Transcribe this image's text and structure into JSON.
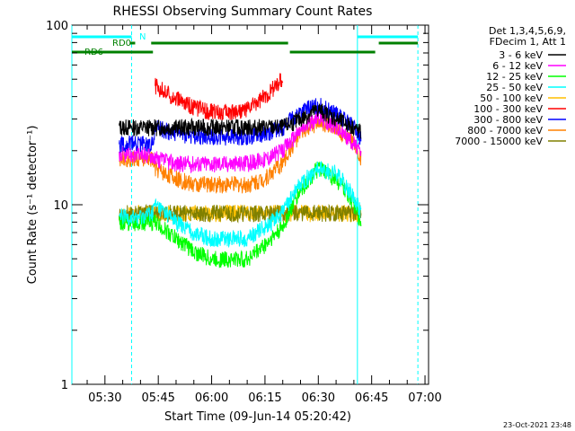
{
  "chart_data": {
    "type": "line",
    "title": "RHESSI Observing Summary Count Rates",
    "xlabel": "Start Time (09-Jun-14 05:20:42)",
    "ylabel": "Count Rate (s⁻¹ detector⁻¹)",
    "y_scale": "log",
    "ylim": [
      1,
      100
    ],
    "xlim": [
      "05:20:42",
      "07:01:00"
    ],
    "x_ticks": [
      "05:30",
      "05:45",
      "06:00",
      "06:15",
      "06:30",
      "06:45",
      "07:00"
    ],
    "y_ticks": [
      "1",
      "10",
      "100"
    ],
    "grid": false,
    "legend_position": "right",
    "legend_header": [
      "Det 1,3,4,5,6,9,",
      "FDecim 1, Att 1"
    ],
    "timestamp": "23-Oct-2021 23:48",
    "flags": [
      {
        "label": "N",
        "color": "#00ffff",
        "intervals": [
          [
            "05:20:42",
            "05:37:30"
          ],
          [
            "06:41:00",
            "06:58:00"
          ]
        ]
      },
      {
        "label": "RD0",
        "color": "#008000",
        "intervals": [
          [
            "05:37:00",
            "05:38:30"
          ],
          [
            "05:43:00",
            "06:21:30"
          ],
          [
            "06:47:00",
            "06:58:00"
          ]
        ]
      },
      {
        "label": "RD6",
        "color": "#008000",
        "intervals": [
          [
            "05:20:42",
            "05:43:30"
          ],
          [
            "06:22:00",
            "06:46:00"
          ]
        ]
      }
    ],
    "markers": [
      {
        "time": "05:20:42",
        "color": "#00ffff",
        "style": "solid"
      },
      {
        "time": "05:37:30",
        "color": "#00ffff",
        "style": "dashed"
      },
      {
        "time": "06:41:00",
        "color": "#00ffff",
        "style": "solid"
      },
      {
        "time": "06:58:00",
        "color": "#00ffff",
        "style": "dashed"
      }
    ],
    "x": [
      "05:34",
      "05:40",
      "05:43:30",
      "05:44",
      "05:50",
      "05:55",
      "06:00",
      "06:05",
      "06:10",
      "06:15",
      "06:20",
      "06:25",
      "06:30",
      "06:35",
      "06:40",
      "06:42"
    ],
    "series": [
      {
        "name": "3 - 6 keV",
        "color": "#000000",
        "values": [
          27,
          27,
          27,
          27,
          27,
          27,
          27,
          27,
          27,
          27,
          27,
          30,
          34,
          30,
          27,
          25
        ]
      },
      {
        "name": "6 - 12 keV",
        "color": "#ff00ff",
        "values": [
          19,
          19,
          19,
          18,
          17,
          17,
          17,
          17,
          17,
          18,
          20,
          26,
          31,
          27,
          22,
          19
        ]
      },
      {
        "name": "12 - 25 keV",
        "color": "#00ff00",
        "values": [
          8,
          8,
          8,
          8,
          6.5,
          5.5,
          5,
          5,
          5,
          6,
          7.5,
          12,
          16,
          14,
          10,
          8
        ]
      },
      {
        "name": "25 - 50 keV",
        "color": "#00ffff",
        "values": [
          8.5,
          8.5,
          9,
          10,
          8,
          7,
          6.5,
          6.5,
          6.5,
          7.5,
          9,
          13,
          16,
          15,
          11,
          9
        ]
      },
      {
        "name": "50 - 100 keV",
        "color": "#ffbf00",
        "values": [
          8.5,
          9,
          9,
          9,
          9,
          9,
          9,
          9,
          9,
          9,
          9,
          9,
          9,
          9,
          9,
          9
        ]
      },
      {
        "name": "100 - 300 keV",
        "color": "#ff0000",
        "values": [
          null,
          null,
          null,
          46,
          39,
          35,
          33,
          33,
          34,
          40,
          50,
          null,
          null,
          null,
          null,
          null
        ]
      },
      {
        "name": "300 - 800 keV",
        "color": "#0000ff",
        "values": [
          22,
          22,
          22,
          27,
          25,
          24,
          24,
          24,
          24,
          25,
          27,
          33,
          36,
          32,
          27,
          23
        ]
      },
      {
        "name": "800 - 7000 keV",
        "color": "#ff8000",
        "values": [
          18,
          18,
          18,
          16,
          14,
          13,
          13,
          13,
          13,
          14,
          17,
          25,
          29,
          27,
          22,
          18
        ]
      },
      {
        "name": "7000 - 15000 keV",
        "color": "#808000",
        "values": [
          9,
          9,
          9,
          9,
          9,
          9,
          9,
          9,
          9,
          9,
          9,
          9,
          9,
          9,
          9,
          9
        ]
      }
    ]
  }
}
